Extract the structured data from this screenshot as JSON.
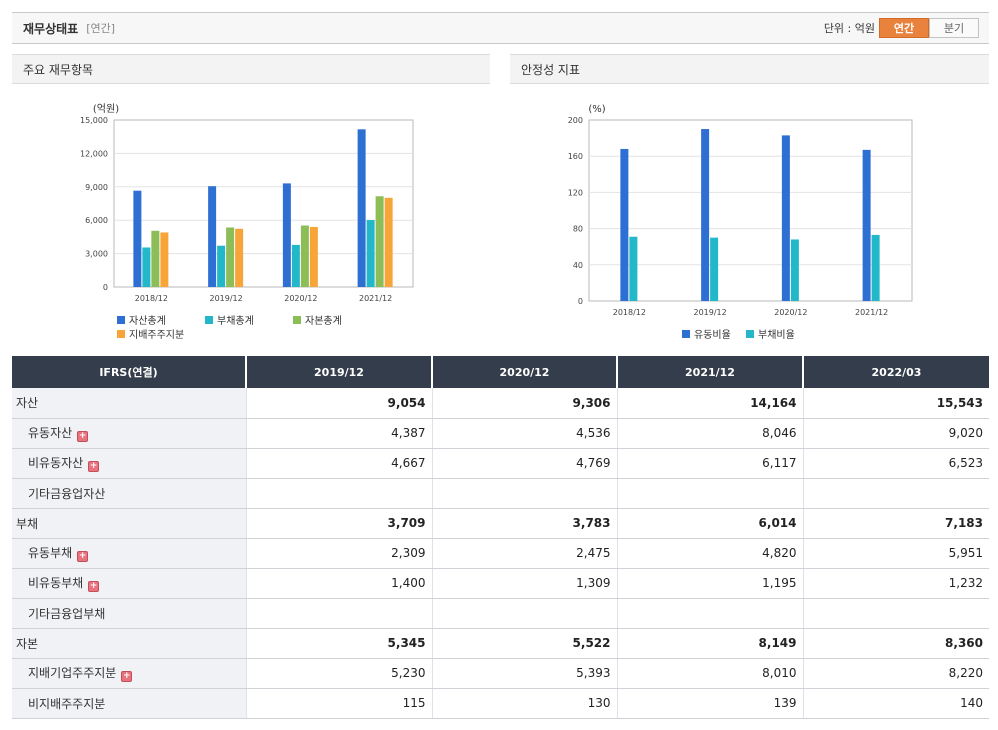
{
  "header": {
    "title": "재무상태표",
    "period": "[연간]",
    "unit_label": "단위 : 억원",
    "toggle": [
      "연간",
      "분기"
    ]
  },
  "colors": {
    "series_1": "#2e6fd4",
    "series_2": "#22b8c9",
    "series_3": "#8cbd56",
    "series_4": "#f7a538",
    "table_header": "#333d4b",
    "toggle_active": "#e8823c"
  },
  "panels": {
    "left_title": "주요 재무항목",
    "right_title": "안정성 지표"
  },
  "chart_data": [
    {
      "type": "bar",
      "title": "",
      "ylabel": "(억원)",
      "categories": [
        "2018/12",
        "2019/12",
        "2020/12",
        "2021/12"
      ],
      "ylim": [
        0,
        15000
      ],
      "yticks": [
        0,
        3000,
        6000,
        9000,
        12000,
        15000
      ],
      "ytick_labels": [
        "0",
        "3,000",
        "6,000",
        "9,000",
        "12,000",
        "15,000"
      ],
      "grid": true,
      "legend_position": "bottom",
      "series": [
        {
          "name": "자산총계",
          "values": [
            8650,
            9054,
            9306,
            14164
          ]
        },
        {
          "name": "부채총계",
          "values": [
            3550,
            3709,
            3783,
            6014
          ]
        },
        {
          "name": "자본총계",
          "values": [
            5050,
            5345,
            5522,
            8149
          ]
        },
        {
          "name": "지배주주지분",
          "values": [
            4900,
            5230,
            5393,
            8010
          ]
        }
      ]
    },
    {
      "type": "bar",
      "title": "",
      "ylabel": "(%)",
      "categories": [
        "2018/12",
        "2019/12",
        "2020/12",
        "2021/12"
      ],
      "ylim": [
        0,
        200
      ],
      "yticks": [
        0,
        40,
        80,
        120,
        160,
        200
      ],
      "ytick_labels": [
        "0",
        "40",
        "80",
        "120",
        "160",
        "200"
      ],
      "grid": true,
      "legend_position": "bottom",
      "series": [
        {
          "name": "유동비율",
          "values": [
            168,
            190,
            183,
            167
          ]
        },
        {
          "name": "부채비율",
          "values": [
            71,
            70,
            68,
            73
          ]
        }
      ]
    }
  ],
  "table": {
    "columns": [
      "IFRS(연결)",
      "2019/12",
      "2020/12",
      "2021/12",
      "2022/03"
    ],
    "rows": [
      {
        "label": "자산",
        "level": 0,
        "expand": false,
        "values": [
          "9,054",
          "9,306",
          "14,164",
          "15,543"
        ]
      },
      {
        "label": "유동자산",
        "level": 1,
        "expand": true,
        "values": [
          "4,387",
          "4,536",
          "8,046",
          "9,020"
        ]
      },
      {
        "label": "비유동자산",
        "level": 1,
        "expand": true,
        "values": [
          "4,667",
          "4,769",
          "6,117",
          "6,523"
        ]
      },
      {
        "label": "기타금융업자산",
        "level": 1,
        "expand": false,
        "values": [
          "",
          "",
          "",
          ""
        ]
      },
      {
        "label": "부채",
        "level": 0,
        "expand": false,
        "values": [
          "3,709",
          "3,783",
          "6,014",
          "7,183"
        ]
      },
      {
        "label": "유동부채",
        "level": 1,
        "expand": true,
        "values": [
          "2,309",
          "2,475",
          "4,820",
          "5,951"
        ]
      },
      {
        "label": "비유동부채",
        "level": 1,
        "expand": true,
        "values": [
          "1,400",
          "1,309",
          "1,195",
          "1,232"
        ]
      },
      {
        "label": "기타금융업부채",
        "level": 1,
        "expand": false,
        "values": [
          "",
          "",
          "",
          ""
        ]
      },
      {
        "label": "자본",
        "level": 0,
        "expand": false,
        "values": [
          "5,345",
          "5,522",
          "8,149",
          "8,360"
        ]
      },
      {
        "label": "지배기업주주지분",
        "level": 1,
        "expand": true,
        "values": [
          "5,230",
          "5,393",
          "8,010",
          "8,220"
        ]
      },
      {
        "label": "비지배주주지분",
        "level": 1,
        "expand": false,
        "values": [
          "115",
          "130",
          "139",
          "140"
        ]
      }
    ]
  }
}
